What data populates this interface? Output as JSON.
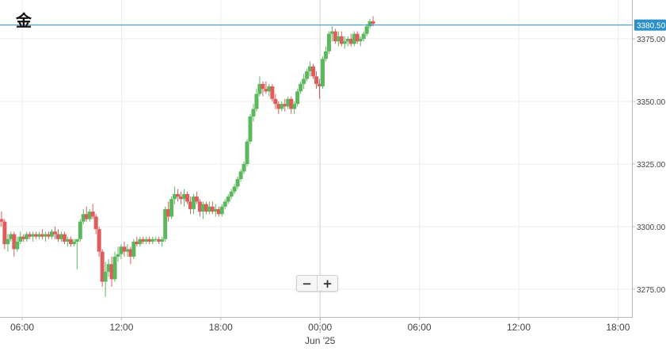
{
  "title": "金",
  "zoom": {
    "out_label": "−",
    "in_label": "+"
  },
  "colors": {
    "up": "#5cb85c",
    "down": "#e05c5c",
    "grid": "#ececec",
    "axis_text": "#444444",
    "price_line": "#2a8fc7",
    "price_badge_bg": "#2a8fc7",
    "price_badge_text": "#ffffff"
  },
  "chart_data": {
    "type": "candlestick",
    "title": "金",
    "current_price": "3380.50",
    "current_price_value": 3380.5,
    "ylim": [
      3264,
      3385
    ],
    "yticks": [
      3275,
      3300,
      3325,
      3350,
      3375
    ],
    "ytick_labels": [
      "3275.00",
      "3300.00",
      "3325.00",
      "3350.00",
      "3375.00"
    ],
    "xlim": [
      3.8,
      27.2
    ],
    "xticks": [
      {
        "hour": 6,
        "label": "06:00"
      },
      {
        "hour": 12,
        "label": "12:00"
      },
      {
        "hour": 18,
        "label": "18:00"
      },
      {
        "hour": 24,
        "label": "00:00"
      },
      {
        "hour": 30,
        "label": "06:00"
      },
      {
        "hour": 36,
        "label": "12:00"
      },
      {
        "hour": 42,
        "label": "18:00"
      }
    ],
    "date_marker": {
      "hour": 24,
      "label": "Jun '25"
    },
    "session_break_hour": 24,
    "grid": true,
    "candle_interval_minutes": 15,
    "ohlc": [
      [
        3297,
        3298,
        3291,
        3293
      ],
      [
        3293,
        3298,
        3291,
        3297
      ],
      [
        3297,
        3299,
        3293,
        3295
      ],
      [
        3295,
        3301,
        3294,
        3300
      ],
      [
        3300,
        3305,
        3299,
        3303
      ],
      [
        3303,
        3306,
        3300,
        3302
      ],
      [
        3302,
        3303,
        3291,
        3293
      ],
      [
        3293,
        3297,
        3290,
        3295
      ],
      [
        3295,
        3298,
        3294,
        3297
      ],
      [
        3297,
        3298,
        3288,
        3291
      ],
      [
        3291,
        3296,
        3290,
        3294
      ],
      [
        3294,
        3298,
        3293,
        3296
      ],
      [
        3296,
        3297,
        3294,
        3295
      ],
      [
        3295,
        3298,
        3294,
        3297
      ],
      [
        3297,
        3298,
        3295,
        3296
      ],
      [
        3296,
        3298,
        3294,
        3297
      ],
      [
        3297,
        3298,
        3295,
        3296
      ],
      [
        3296,
        3298,
        3295,
        3297
      ],
      [
        3297,
        3299,
        3295,
        3296
      ],
      [
        3296,
        3298,
        3294,
        3297
      ],
      [
        3297,
        3298,
        3295,
        3296
      ],
      [
        3296,
        3299,
        3295,
        3298
      ],
      [
        3298,
        3300,
        3295,
        3297
      ],
      [
        3297,
        3299,
        3294,
        3295
      ],
      [
        3295,
        3298,
        3294,
        3297
      ],
      [
        3297,
        3298,
        3293,
        3294
      ],
      [
        3294,
        3296,
        3292,
        3295
      ],
      [
        3295,
        3296,
        3292,
        3293
      ],
      [
        3293,
        3295,
        3292,
        3294
      ],
      [
        3294,
        3295,
        3283,
        3295
      ],
      [
        3295,
        3303,
        3294,
        3302
      ],
      [
        3302,
        3307,
        3301,
        3305
      ],
      [
        3305,
        3308,
        3302,
        3303
      ],
      [
        3303,
        3307,
        3302,
        3306
      ],
      [
        3306,
        3309,
        3303,
        3304
      ],
      [
        3304,
        3305,
        3297,
        3299
      ],
      [
        3299,
        3300,
        3288,
        3290
      ],
      [
        3290,
        3291,
        3276,
        3278
      ],
      [
        3278,
        3286,
        3272,
        3282
      ],
      [
        3282,
        3287,
        3280,
        3285
      ],
      [
        3285,
        3288,
        3276,
        3279
      ],
      [
        3279,
        3290,
        3278,
        3288
      ],
      [
        3288,
        3292,
        3286,
        3289
      ],
      [
        3289,
        3293,
        3287,
        3292
      ],
      [
        3292,
        3294,
        3288,
        3290
      ],
      [
        3290,
        3293,
        3288,
        3291
      ],
      [
        3291,
        3292,
        3285,
        3288
      ],
      [
        3288,
        3295,
        3287,
        3294
      ],
      [
        3294,
        3296,
        3292,
        3293
      ],
      [
        3293,
        3296,
        3292,
        3295
      ],
      [
        3295,
        3296,
        3293,
        3294
      ],
      [
        3294,
        3296,
        3293,
        3295
      ],
      [
        3295,
        3296,
        3293,
        3294
      ],
      [
        3294,
        3296,
        3293,
        3295
      ],
      [
        3295,
        3296,
        3294,
        3295
      ],
      [
        3295,
        3296,
        3293,
        3294
      ],
      [
        3294,
        3296,
        3292,
        3295
      ],
      [
        3295,
        3308,
        3294,
        3307
      ],
      [
        3307,
        3310,
        3302,
        3304
      ],
      [
        3304,
        3312,
        3303,
        3311
      ],
      [
        3311,
        3316,
        3309,
        3313
      ],
      [
        3313,
        3315,
        3310,
        3312
      ],
      [
        3312,
        3314,
        3309,
        3311
      ],
      [
        3311,
        3315,
        3308,
        3313
      ],
      [
        3313,
        3314,
        3309,
        3310
      ],
      [
        3310,
        3312,
        3305,
        3307
      ],
      [
        3307,
        3313,
        3305,
        3312
      ],
      [
        3312,
        3314,
        3309,
        3310
      ],
      [
        3310,
        3311,
        3304,
        3306
      ],
      [
        3306,
        3310,
        3303,
        3309
      ],
      [
        3309,
        3310,
        3305,
        3306
      ],
      [
        3306,
        3310,
        3305,
        3308
      ],
      [
        3308,
        3310,
        3305,
        3306
      ],
      [
        3306,
        3309,
        3304,
        3307
      ],
      [
        3307,
        3308,
        3304,
        3305
      ],
      [
        3305,
        3309,
        3304,
        3308
      ],
      [
        3308,
        3311,
        3307,
        3310
      ],
      [
        3310,
        3313,
        3309,
        3312
      ],
      [
        3312,
        3315,
        3311,
        3314
      ],
      [
        3314,
        3317,
        3313,
        3316
      ],
      [
        3316,
        3320,
        3315,
        3319
      ],
      [
        3319,
        3323,
        3318,
        3322
      ],
      [
        3322,
        3326,
        3321,
        3325
      ],
      [
        3325,
        3335,
        3324,
        3334
      ],
      [
        3334,
        3345,
        3333,
        3344
      ],
      [
        3344,
        3349,
        3342,
        3347
      ],
      [
        3347,
        3355,
        3346,
        3353
      ],
      [
        3353,
        3360,
        3352,
        3357
      ],
      [
        3357,
        3358,
        3352,
        3355
      ],
      [
        3355,
        3358,
        3353,
        3354
      ],
      [
        3354,
        3357,
        3352,
        3356
      ],
      [
        3356,
        3357,
        3350,
        3351
      ],
      [
        3351,
        3353,
        3347,
        3349
      ],
      [
        3349,
        3350,
        3345,
        3347
      ],
      [
        3347,
        3350,
        3346,
        3349
      ],
      [
        3349,
        3351,
        3346,
        3348
      ],
      [
        3348,
        3352,
        3347,
        3351
      ],
      [
        3351,
        3352,
        3345,
        3347
      ],
      [
        3347,
        3350,
        3345,
        3349
      ],
      [
        3349,
        3355,
        3348,
        3354
      ],
      [
        3354,
        3358,
        3353,
        3357
      ],
      [
        3357,
        3361,
        3355,
        3359
      ],
      [
        3359,
        3363,
        3358,
        3362
      ],
      [
        3362,
        3366,
        3360,
        3364
      ],
      [
        3364,
        3365,
        3359,
        3360
      ],
      [
        3360,
        3362,
        3355,
        3357
      ],
      [
        3357,
        3359,
        3351,
        3356
      ],
      [
        3356,
        3368,
        3355,
        3367
      ],
      [
        3367,
        3372,
        3366,
        3370
      ],
      [
        3370,
        3378,
        3369,
        3377
      ],
      [
        3377,
        3380,
        3374,
        3378
      ],
      [
        3378,
        3379,
        3373,
        3374
      ],
      [
        3374,
        3378,
        3372,
        3376
      ],
      [
        3376,
        3378,
        3372,
        3373
      ],
      [
        3373,
        3376,
        3371,
        3374
      ],
      [
        3374,
        3376,
        3372,
        3375
      ],
      [
        3375,
        3377,
        3372,
        3373
      ],
      [
        3373,
        3378,
        3372,
        3377
      ],
      [
        3377,
        3378,
        3373,
        3374
      ],
      [
        3374,
        3376,
        3372,
        3375
      ],
      [
        3375,
        3378,
        3374,
        3377
      ],
      [
        3377,
        3381,
        3376,
        3380
      ],
      [
        3380,
        3383,
        3379,
        3382
      ],
      [
        3382,
        3384,
        3380,
        3381
      ]
    ]
  }
}
